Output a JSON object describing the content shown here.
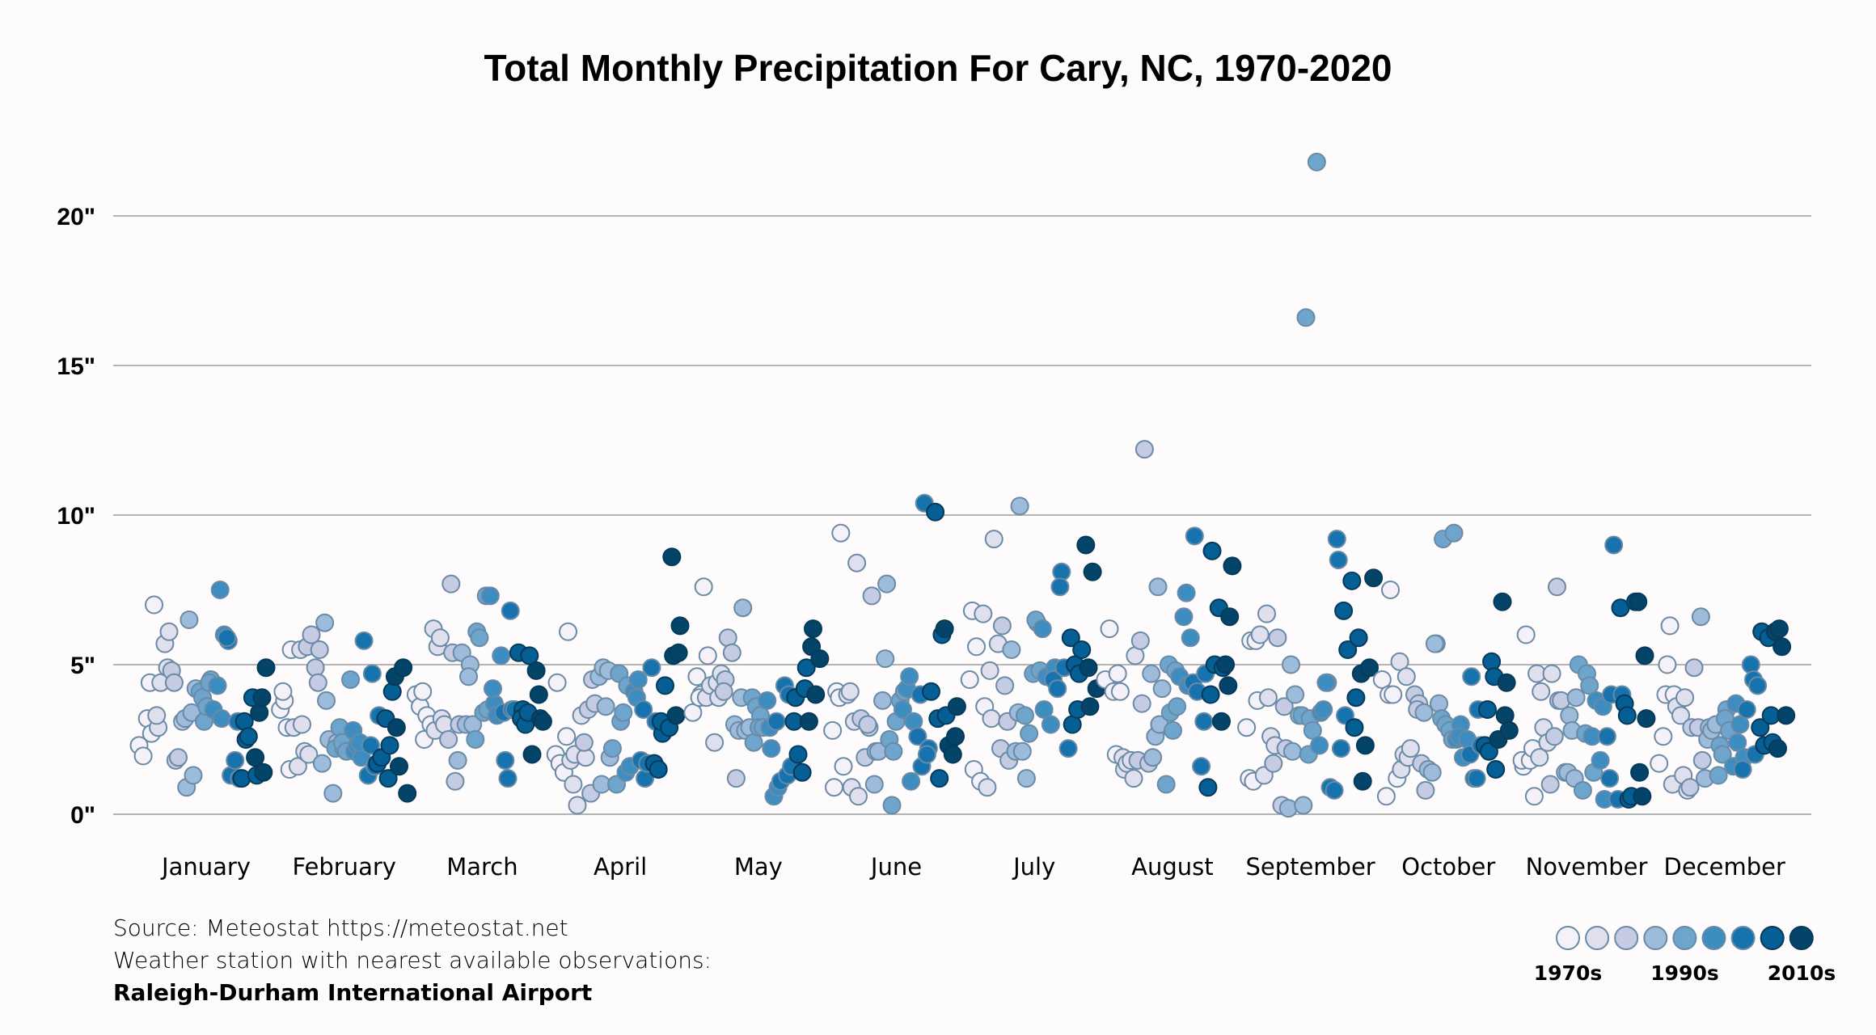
{
  "chart_data": {
    "type": "scatter",
    "title": "Total Monthly Precipitation For Cary, NC, 1970-2020",
    "xlabel": "",
    "ylabel": "",
    "y_unit": "inches",
    "ylim": [
      0,
      22
    ],
    "yticks": [
      0,
      5,
      10,
      15,
      20
    ],
    "ytick_labels": [
      "0\"",
      "5\"",
      "10\"",
      "15\"",
      "20\""
    ],
    "grid": true,
    "categories": [
      "January",
      "February",
      "March",
      "April",
      "May",
      "June",
      "July",
      "August",
      "September",
      "October",
      "November",
      "December"
    ],
    "years": [
      1970,
      2020
    ],
    "color_by": "decade",
    "legend": {
      "placement": "bottom-right",
      "colors": [
        "#f4f1f8",
        "#e0dfee",
        "#c4cbe3",
        "#9dbbda",
        "#6ea5cd",
        "#3d8dc0",
        "#1673ad",
        "#055e94",
        "#044468"
      ],
      "labels": [
        "1970s",
        "1990s",
        "2010s"
      ]
    },
    "series": [
      {
        "name": "January",
        "values": [
          2.3,
          1.95,
          3.2,
          2.7,
          4.4,
          7.0,
          2.9,
          3.3,
          4.4,
          5.7,
          6.1,
          4.9,
          4.8,
          1.8,
          4.4,
          1.9,
          3.1,
          0.9,
          3.2,
          6.5,
          1.3,
          3.4,
          4.2,
          4.1,
          3.1,
          3.9,
          3.6,
          4.5,
          4.4,
          3.5,
          4.3,
          3.2,
          7.5,
          6.0,
          5.8,
          5.9,
          1.3,
          1.8,
          1.2,
          3.1,
          1.2,
          2.5,
          3.1,
          2.6,
          3.9,
          1.3,
          1.9,
          3.4,
          1.4,
          3.9,
          4.9
        ]
      },
      {
        "name": "February",
        "values": [
          3.5,
          3.8,
          4.1,
          2.9,
          5.5,
          1.5,
          2.9,
          1.6,
          3.0,
          5.5,
          2.1,
          2.0,
          5.6,
          6.0,
          4.9,
          5.5,
          4.4,
          1.7,
          3.8,
          6.4,
          2.5,
          0.7,
          2.4,
          2.2,
          2.9,
          2.2,
          2.4,
          2.1,
          4.5,
          2.1,
          2.8,
          2.3,
          1.9,
          2.4,
          5.8,
          1.3,
          4.7,
          2.3,
          1.6,
          3.3,
          1.7,
          1.9,
          3.2,
          2.3,
          1.2,
          4.1,
          2.9,
          4.6,
          1.6,
          4.9,
          0.7
        ]
      },
      {
        "name": "March",
        "values": [
          4.0,
          3.6,
          2.5,
          4.1,
          3.3,
          3.0,
          2.8,
          6.2,
          5.6,
          3.2,
          5.9,
          3.0,
          2.5,
          5.4,
          7.7,
          1.1,
          3.0,
          1.8,
          5.4,
          3.0,
          5.0,
          4.6,
          3.0,
          6.1,
          2.5,
          5.9,
          3.4,
          3.5,
          7.3,
          7.3,
          3.7,
          4.2,
          3.3,
          5.3,
          1.8,
          3.4,
          1.2,
          3.5,
          6.8,
          3.5,
          5.4,
          3.5,
          3.2,
          3.0,
          5.3,
          3.4,
          2.0,
          4.8,
          3.2,
          4.0,
          3.1
        ]
      },
      {
        "name": "April",
        "values": [
          4.4,
          2.0,
          1.7,
          1.4,
          6.1,
          2.6,
          1.8,
          2.0,
          1.0,
          0.3,
          3.3,
          1.9,
          2.4,
          3.5,
          4.5,
          0.7,
          3.7,
          4.6,
          4.9,
          1.0,
          3.6,
          1.9,
          4.8,
          2.2,
          1.0,
          3.1,
          4.7,
          3.4,
          4.3,
          1.4,
          1.6,
          4.1,
          4.5,
          3.9,
          1.8,
          1.2,
          3.5,
          1.7,
          4.9,
          3.1,
          1.7,
          1.5,
          2.7,
          3.1,
          4.3,
          2.9,
          5.3,
          8.6,
          3.3,
          6.3,
          5.4
        ]
      },
      {
        "name": "May",
        "values": [
          3.4,
          4.6,
          4.0,
          3.9,
          7.6,
          5.3,
          3.9,
          4.3,
          2.4,
          3.9,
          4.4,
          4.7,
          4.5,
          4.1,
          5.9,
          5.4,
          1.2,
          3.0,
          2.8,
          6.9,
          3.9,
          2.8,
          2.9,
          2.4,
          3.9,
          3.6,
          3.3,
          2.9,
          2.9,
          3.8,
          2.2,
          2.9,
          0.6,
          0.9,
          3.1,
          1.1,
          4.3,
          4.0,
          1.3,
          1.6,
          3.9,
          3.1,
          2.0,
          1.4,
          4.9,
          4.2,
          3.1,
          6.2,
          5.6,
          4.0,
          5.2
        ]
      },
      {
        "name": "June",
        "values": [
          0.9,
          2.8,
          4.1,
          9.4,
          3.9,
          1.6,
          4.0,
          0.9,
          4.1,
          3.1,
          0.6,
          8.4,
          3.2,
          1.9,
          2.9,
          3.0,
          7.3,
          2.1,
          1.0,
          2.1,
          3.8,
          7.7,
          5.2,
          2.5,
          2.1,
          0.3,
          3.1,
          3.8,
          4.1,
          3.5,
          4.2,
          1.1,
          4.6,
          3.1,
          2.6,
          1.6,
          4.0,
          10.4,
          2.2,
          2.0,
          4.1,
          10.1,
          1.2,
          3.2,
          6.0,
          3.3,
          6.2,
          2.3,
          2.0,
          3.6,
          2.6
        ]
      },
      {
        "name": "July",
        "values": [
          4.5,
          1.5,
          6.8,
          5.6,
          1.1,
          3.6,
          6.7,
          0.9,
          3.2,
          4.8,
          9.2,
          5.7,
          6.3,
          2.2,
          4.3,
          1.8,
          3.1,
          5.5,
          2.1,
          10.3,
          3.4,
          2.1,
          1.2,
          3.3,
          2.7,
          4.7,
          6.4,
          6.5,
          4.8,
          3.5,
          6.2,
          4.6,
          3.0,
          4.9,
          4.5,
          4.2,
          8.1,
          7.6,
          4.9,
          2.2,
          3.0,
          5.9,
          5.0,
          4.7,
          3.5,
          5.5,
          9.0,
          3.6,
          4.9,
          8.1,
          4.2
        ]
      },
      {
        "name": "August",
        "values": [
          4.5,
          6.2,
          4.1,
          4.7,
          2.0,
          4.1,
          1.5,
          1.9,
          1.7,
          1.8,
          5.3,
          1.2,
          1.8,
          3.7,
          5.8,
          12.2,
          1.7,
          1.9,
          4.7,
          2.6,
          3.0,
          7.6,
          4.2,
          1.0,
          3.4,
          5.0,
          2.8,
          3.6,
          4.8,
          4.6,
          6.6,
          4.3,
          7.4,
          5.9,
          9.3,
          4.4,
          4.1,
          1.6,
          4.7,
          3.1,
          0.9,
          8.8,
          4.0,
          5.0,
          6.9,
          4.9,
          3.1,
          5.0,
          6.6,
          4.3,
          8.3
        ]
      },
      {
        "name": "September",
        "values": [
          2.9,
          5.8,
          1.2,
          1.1,
          3.8,
          5.8,
          6.0,
          1.3,
          3.9,
          6.7,
          2.6,
          2.3,
          1.7,
          5.9,
          0.3,
          2.2,
          3.6,
          0.2,
          2.1,
          5.0,
          4.0,
          3.3,
          0.3,
          3.3,
          16.6,
          3.2,
          2.0,
          2.8,
          21.8,
          3.4,
          2.3,
          3.5,
          4.4,
          4.4,
          0.9,
          0.8,
          8.5,
          9.2,
          2.2,
          3.3,
          6.8,
          5.5,
          7.8,
          3.9,
          2.9,
          5.9,
          1.1,
          4.7,
          2.3,
          4.9,
          7.9
        ]
      },
      {
        "name": "October",
        "values": [
          4.5,
          0.6,
          7.5,
          4.0,
          4.0,
          1.2,
          1.5,
          5.1,
          2.0,
          1.9,
          4.6,
          2.2,
          4.0,
          3.7,
          3.5,
          1.7,
          0.8,
          3.4,
          1.5,
          1.4,
          5.7,
          5.7,
          3.7,
          9.2,
          3.2,
          3.0,
          2.8,
          9.4,
          2.5,
          2.5,
          3.0,
          2.6,
          1.9,
          2.5,
          4.6,
          2.0,
          1.2,
          3.5,
          1.2,
          2.3,
          2.3,
          2.1,
          3.5,
          5.1,
          1.5,
          4.6,
          2.5,
          7.1,
          4.4,
          3.3,
          2.8
        ]
      },
      {
        "name": "November",
        "values": [
          1.6,
          1.8,
          6.0,
          1.8,
          0.6,
          2.2,
          4.7,
          4.1,
          1.9,
          2.9,
          2.4,
          4.7,
          1.0,
          2.6,
          3.8,
          7.6,
          3.8,
          1.4,
          3.3,
          1.4,
          2.8,
          3.9,
          1.2,
          5.0,
          0.8,
          4.7,
          2.7,
          4.3,
          1.4,
          2.6,
          3.8,
          1.8,
          0.5,
          3.6,
          2.6,
          4.0,
          1.2,
          9.0,
          0.5,
          4.0,
          6.9,
          3.7,
          0.5,
          3.3,
          0.6,
          7.1,
          1.4,
          7.1,
          0.6,
          3.2,
          5.3
        ]
      },
      {
        "name": "December",
        "values": [
          1.7,
          2.6,
          5.0,
          4.0,
          6.3,
          4.0,
          1.0,
          3.6,
          3.3,
          3.9,
          1.3,
          0.8,
          2.9,
          0.9,
          4.9,
          2.9,
          1.8,
          6.6,
          1.2,
          2.9,
          2.5,
          2.8,
          3.0,
          2.3,
          1.3,
          2.0,
          3.5,
          3.2,
          2.8,
          1.6,
          2.4,
          3.7,
          3.0,
          1.9,
          1.5,
          3.5,
          5.0,
          2.0,
          4.5,
          4.3,
          6.1,
          2.9,
          2.3,
          5.9,
          2.4,
          3.3,
          6.1,
          6.2,
          2.2,
          5.6,
          3.3
        ]
      }
    ]
  },
  "footer": {
    "source": "Source: Meteostat https://meteostat.net",
    "station_label": "Weather station with nearest available observations:",
    "station_name": "Raleigh-Durham International Airport"
  }
}
